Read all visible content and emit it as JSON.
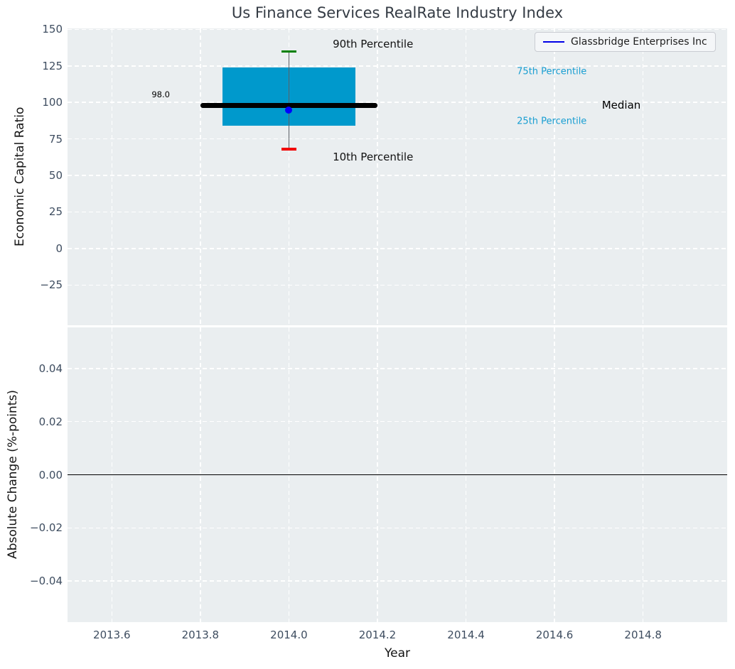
{
  "chart_data": {
    "type": "box",
    "title": "Us Finance Services RealRate Industry Index",
    "legend": {
      "label": "Glassbridge Enterprises Inc",
      "line_color": "#0000e6",
      "position": "upper right"
    },
    "x_axis": {
      "label": "Year",
      "lim": [
        2013.5,
        2014.99
      ],
      "ticks": [
        2013.6,
        2013.8,
        2014.0,
        2014.2,
        2014.4,
        2014.6,
        2014.8
      ],
      "tick_labels": [
        "2013.6",
        "2013.8",
        "2014.0",
        "2014.2",
        "2014.4",
        "2014.6",
        "2014.8"
      ],
      "grid": true
    },
    "panels": [
      {
        "name": "economic-capital-ratio",
        "ylabel": "Economic Capital Ratio",
        "ylim": [
          -52.6,
          150.7
        ],
        "yticks": [
          150,
          125,
          100,
          75,
          50,
          25,
          0,
          -25
        ],
        "ytick_labels": [
          "150",
          "125",
          "100",
          "75",
          "50",
          "25",
          "0",
          "−25"
        ],
        "grid": true,
        "box": {
          "year": 2014.0,
          "p10": 68,
          "p25": 84,
          "median": 98,
          "p75": 124,
          "p90": 135,
          "median_label": "98.0",
          "company_value": 95
        },
        "geometry": {
          "box_x": [
            2013.85,
            2014.15
          ],
          "median_x": [
            2013.8,
            2014.2
          ],
          "cap_half_width": 0.017
        },
        "annotations": [
          {
            "text": "90th Percentile",
            "x": 2014.099,
            "y": 140.0,
            "color": "#111111",
            "size": 15
          },
          {
            "text": "10th Percentile",
            "x": 2014.099,
            "y": 62.7,
            "color": "#111111",
            "size": 15
          },
          {
            "text": "Median",
            "x": 2014.707,
            "y": 98.2,
            "color": "#000000",
            "size": 15
          },
          {
            "text": "75th Percentile",
            "x": 2014.515,
            "y": 121.0,
            "color": "#189ed2",
            "size": 13
          },
          {
            "text": "25th Percentile",
            "x": 2014.515,
            "y": 87.0,
            "color": "#189ed2",
            "size": 13
          },
          {
            "text": "98.0",
            "x": 2013.69,
            "y": 105.5,
            "color": "#000000",
            "size": 11.5
          }
        ],
        "colors": {
          "box": "#0099cc",
          "median_line": "#000000",
          "whisker": "#5d6167",
          "cap_90th": "#008000",
          "cap_10th": "#f20000",
          "company_point": "#0000ff"
        }
      },
      {
        "name": "absolute-change",
        "ylabel": "Absolute Change (%-points)",
        "ylim": [
          -0.0555,
          0.0555
        ],
        "yticks": [
          0.04,
          0.02,
          0,
          -0.02,
          -0.04
        ],
        "ytick_labels": [
          "0.04",
          "0.02",
          "0.00",
          "−0.02",
          "−0.04"
        ],
        "grid": true,
        "zero_line": true
      }
    ],
    "style": {
      "plot_bg": "#eaeef0",
      "grid_color": "#ffffff",
      "tick_color": "#3e4d60",
      "label_color": "#141414",
      "title_color": "#343b44"
    }
  }
}
